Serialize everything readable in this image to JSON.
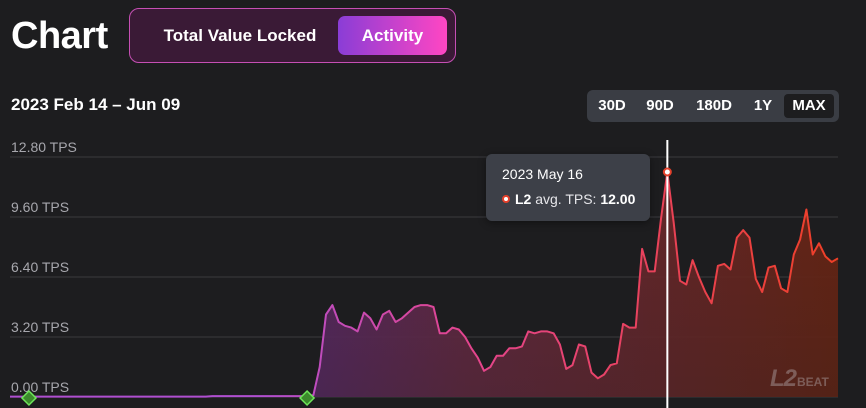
{
  "header": {
    "title": "Chart",
    "tabs": [
      {
        "label": "Total Value Locked",
        "active": false
      },
      {
        "label": "Activity",
        "active": true
      }
    ]
  },
  "date_range": "2023 Feb 14 – Jun 09",
  "range_options": [
    {
      "label": "30D",
      "selected": false
    },
    {
      "label": "90D",
      "selected": false
    },
    {
      "label": "180D",
      "selected": false
    },
    {
      "label": "1Y",
      "selected": false
    },
    {
      "label": "MAX",
      "selected": true
    }
  ],
  "tooltip": {
    "date": "2023 May 16",
    "series": "L2",
    "metric": "avg. TPS:",
    "value": "12.00"
  },
  "watermark": {
    "l2": "L2",
    "beat": "BEAT"
  },
  "colors": {
    "background": "#1d1d1f",
    "accent_purple": "#8a3dd6",
    "accent_pink": "#ff46c3",
    "line_start": "#b04fd0",
    "line_end": "#ee3f26",
    "milestone": "#4cd137"
  },
  "chart_data": {
    "type": "area",
    "series": [
      {
        "name": "L2",
        "values": [
          0.02,
          0.02,
          0.02,
          0.02,
          0.02,
          0.02,
          0.02,
          0.02,
          0.02,
          0.02,
          0.02,
          0.02,
          0.02,
          0.02,
          0.02,
          0.02,
          0.02,
          0.02,
          0.02,
          0.02,
          0.02,
          0.02,
          0.02,
          0.02,
          0.02,
          0.02,
          0.02,
          0.02,
          0.02,
          0.02,
          0.02,
          0.02,
          0.05,
          0.05,
          0.05,
          0.05,
          0.05,
          0.05,
          0.05,
          0.05,
          0.05,
          0.05,
          0.05,
          0.05,
          0.05,
          0.05,
          0.05,
          0.05,
          0.1,
          1.6,
          4.4,
          4.9,
          4.0,
          3.8,
          3.7,
          3.5,
          4.5,
          4.2,
          3.6,
          4.4,
          4.6,
          4.0,
          4.2,
          4.5,
          4.8,
          4.9,
          4.9,
          4.8,
          3.4,
          3.4,
          3.7,
          3.6,
          3.2,
          2.6,
          2.1,
          1.4,
          1.6,
          2.2,
          2.2,
          2.6,
          2.6,
          2.7,
          3.5,
          3.4,
          3.5,
          3.5,
          3.4,
          2.8,
          1.5,
          1.7,
          2.8,
          2.7,
          1.3,
          1.0,
          1.2,
          1.7,
          1.8,
          3.9,
          3.7,
          3.7,
          7.9,
          6.7,
          6.7,
          9.5,
          12.0,
          9.3,
          6.2,
          6.0,
          7.3,
          6.4,
          5.6,
          5.0,
          7.0,
          7.1,
          6.8,
          8.5,
          8.9,
          8.5,
          6.3,
          5.6,
          6.9,
          7.0,
          5.8,
          5.6,
          7.6,
          8.4,
          10.0,
          7.6,
          8.2,
          7.5,
          7.2,
          7.4
        ]
      }
    ],
    "ylim": [
      0,
      12.8
    ],
    "yticks": [
      "0.00 TPS",
      "3.20 TPS",
      "6.40 TPS",
      "9.60 TPS",
      "12.80 TPS"
    ],
    "hover_index": 104,
    "milestone_indices": [
      3,
      47
    ],
    "grid": true
  }
}
